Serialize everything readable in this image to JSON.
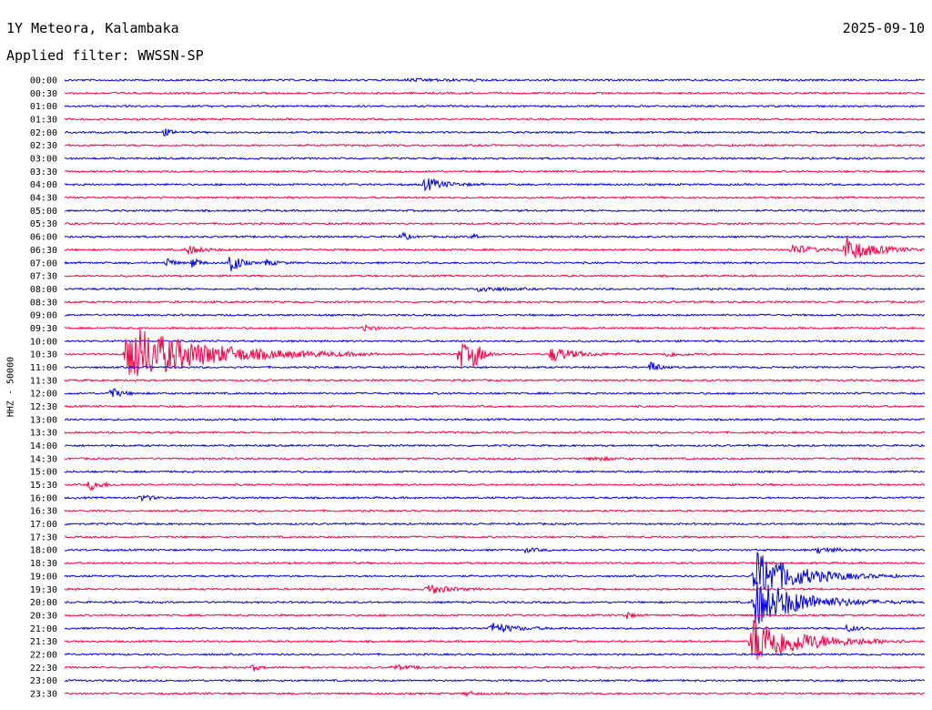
{
  "header": {
    "station": "1Y Meteora, Kalambaka",
    "date": "2025-09-10",
    "filter": "Applied filter: WWSSN-SP",
    "channel": "HHZ - 50000"
  },
  "colors": {
    "even_trace": "#0000dd",
    "odd_trace": "#ff0044"
  },
  "chart_data": {
    "type": "line",
    "title": "1Y Meteora, Kalambaka",
    "subtitle": "Applied filter: WWSSN-SP",
    "ylabel": "HHZ - 50000",
    "xlabel": "",
    "grid": false,
    "legend": "none",
    "series_kind": "helicorder (24h seismogram, 30-minute lines)",
    "x": {
      "unit": "minutes past line start",
      "range": [
        0,
        30
      ]
    },
    "lines": [
      {
        "label": "00:00",
        "events": [
          {
            "t": 12,
            "a": 0.1,
            "d": 3
          }
        ]
      },
      {
        "label": "00:30",
        "events": []
      },
      {
        "label": "01:00",
        "events": []
      },
      {
        "label": "01:30",
        "events": []
      },
      {
        "label": "02:00",
        "events": [
          {
            "t": 3.5,
            "a": 0.3,
            "d": 0.5
          }
        ]
      },
      {
        "label": "02:30",
        "events": []
      },
      {
        "label": "03:00",
        "events": []
      },
      {
        "label": "03:30",
        "events": []
      },
      {
        "label": "04:00",
        "events": [
          {
            "t": 12.6,
            "a": 0.6,
            "d": 1
          }
        ]
      },
      {
        "label": "04:30",
        "events": []
      },
      {
        "label": "05:00",
        "events": []
      },
      {
        "label": "05:30",
        "events": []
      },
      {
        "label": "06:00",
        "events": [
          {
            "t": 11.8,
            "a": 0.4,
            "d": 0.3
          },
          {
            "t": 14.3,
            "a": 0.3,
            "d": 0.2
          }
        ]
      },
      {
        "label": "06:30",
        "events": [
          {
            "t": 4.3,
            "a": 0.4,
            "d": 0.8
          },
          {
            "t": 25.4,
            "a": 0.5,
            "d": 1
          },
          {
            "t": 27.2,
            "a": 1.2,
            "d": 1.5
          }
        ]
      },
      {
        "label": "07:00",
        "events": [
          {
            "t": 3.6,
            "a": 0.5,
            "d": 0.3
          },
          {
            "t": 4.5,
            "a": 0.6,
            "d": 0.3
          },
          {
            "t": 5.8,
            "a": 1.3,
            "d": 0.4
          },
          {
            "t": 7,
            "a": 0.3,
            "d": 0.6
          }
        ]
      },
      {
        "label": "07:30",
        "events": []
      },
      {
        "label": "08:00",
        "events": [
          {
            "t": 14.5,
            "a": 0.3,
            "d": 1
          }
        ]
      },
      {
        "label": "08:30",
        "events": []
      },
      {
        "label": "09:00",
        "events": []
      },
      {
        "label": "09:30",
        "events": [
          {
            "t": 10.5,
            "a": 0.3,
            "d": 0.5
          }
        ]
      },
      {
        "label": "10:00",
        "events": []
      },
      {
        "label": "10:30",
        "events": [
          {
            "t": 2.2,
            "a": 2.8,
            "d": 4
          },
          {
            "t": 13.8,
            "a": 1.3,
            "d": 0.6
          },
          {
            "t": 14.3,
            "a": 1,
            "d": 0.4
          },
          {
            "t": 17,
            "a": 0.7,
            "d": 1.2
          },
          {
            "t": 21,
            "a": 0.2,
            "d": 1
          }
        ]
      },
      {
        "label": "11:00",
        "events": [
          {
            "t": 20.5,
            "a": 0.7,
            "d": 0.3
          }
        ]
      },
      {
        "label": "11:30",
        "events": []
      },
      {
        "label": "12:00",
        "events": [
          {
            "t": 1.6,
            "a": 0.5,
            "d": 0.6
          }
        ]
      },
      {
        "label": "12:30",
        "events": []
      },
      {
        "label": "13:00",
        "events": []
      },
      {
        "label": "13:30",
        "events": []
      },
      {
        "label": "14:00",
        "events": []
      },
      {
        "label": "14:30",
        "events": [
          {
            "t": 18.4,
            "a": 0.2,
            "d": 1
          }
        ]
      },
      {
        "label": "15:00",
        "events": []
      },
      {
        "label": "15:30",
        "events": [
          {
            "t": 0.9,
            "a": 0.5,
            "d": 0.6
          }
        ]
      },
      {
        "label": "16:00",
        "events": [
          {
            "t": 2.7,
            "a": 0.3,
            "d": 0.5
          }
        ]
      },
      {
        "label": "16:30",
        "events": []
      },
      {
        "label": "17:00",
        "events": []
      },
      {
        "label": "17:30",
        "events": []
      },
      {
        "label": "18:00",
        "events": [
          {
            "t": 16.1,
            "a": 0.2,
            "d": 0.6
          },
          {
            "t": 26.3,
            "a": 0.3,
            "d": 1
          }
        ]
      },
      {
        "label": "18:30",
        "events": []
      },
      {
        "label": "19:00",
        "events": [
          {
            "t": 24.1,
            "a": 2.3,
            "d": 2.3
          }
        ]
      },
      {
        "label": "19:30",
        "events": [
          {
            "t": 12.7,
            "a": 0.5,
            "d": 1
          }
        ]
      },
      {
        "label": "20:00",
        "events": [
          {
            "t": 24.1,
            "a": 2.2,
            "d": 2.5
          }
        ]
      },
      {
        "label": "20:30",
        "events": [
          {
            "t": 19.6,
            "a": 0.4,
            "d": 0.3
          }
        ]
      },
      {
        "label": "21:00",
        "events": [
          {
            "t": 14.9,
            "a": 0.5,
            "d": 1.2
          },
          {
            "t": 27.3,
            "a": 0.3,
            "d": 0.6
          }
        ]
      },
      {
        "label": "21:30",
        "events": [
          {
            "t": 24,
            "a": 2.3,
            "d": 2.6
          }
        ]
      },
      {
        "label": "22:00",
        "events": []
      },
      {
        "label": "22:30",
        "events": [
          {
            "t": 6.6,
            "a": 0.3,
            "d": 0.3
          },
          {
            "t": 11.5,
            "a": 0.2,
            "d": 1
          }
        ]
      },
      {
        "label": "23:00",
        "events": []
      },
      {
        "label": "23:30",
        "events": [
          {
            "t": 14,
            "a": 0.2,
            "d": 0.5
          }
        ]
      }
    ]
  }
}
